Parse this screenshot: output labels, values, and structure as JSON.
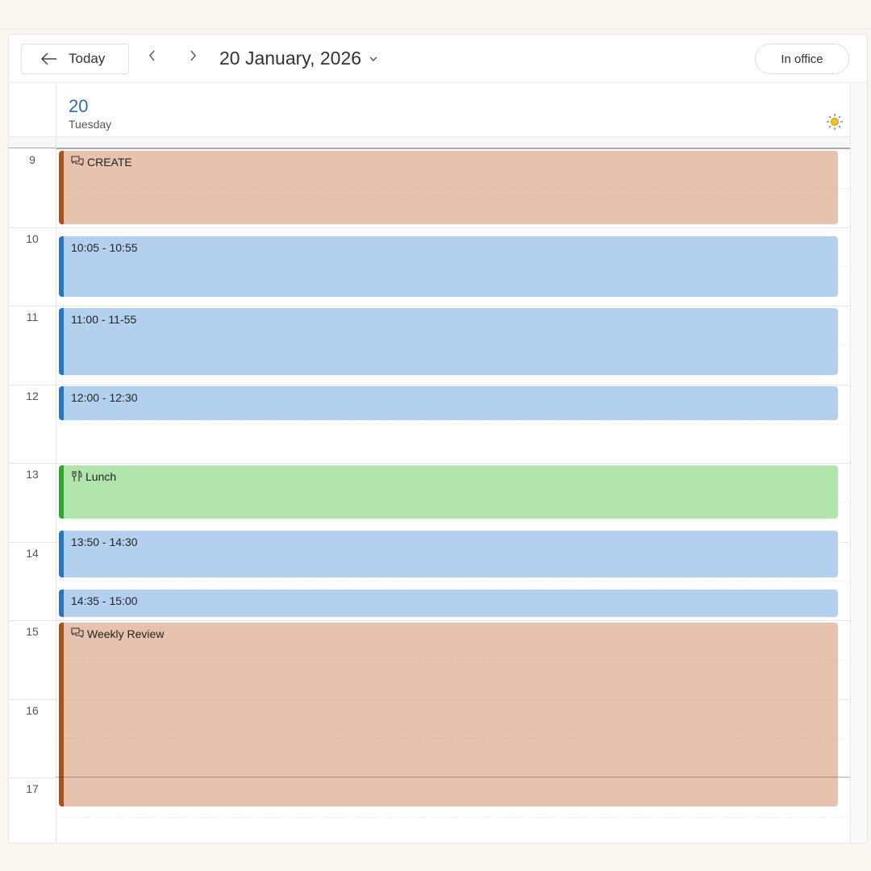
{
  "toolbar": {
    "today_label": "Today",
    "date_title": "20 January, 2026",
    "status_label": "In office",
    "back_icon": "arrow-left-icon",
    "prev_icon": "chevron-left-icon",
    "next_icon": "chevron-right-icon",
    "dropdown_icon": "chevron-down-icon"
  },
  "day": {
    "number": "20",
    "name": "Tuesday",
    "weather_icon": "sun-icon"
  },
  "hours": [
    "9",
    "10",
    "11",
    "12",
    "13",
    "14",
    "15",
    "16",
    "17"
  ],
  "events": [
    {
      "title": "CREATE",
      "icon": "chat-icon",
      "color": "brown"
    },
    {
      "title": "10:05 - 10:55",
      "color": "blue"
    },
    {
      "title": "11:00 - 11-55",
      "color": "blue"
    },
    {
      "title": "12:00 - 12:30",
      "color": "blue"
    },
    {
      "title": "Lunch",
      "icon": "fork-knife-icon",
      "color": "green"
    },
    {
      "title": "13:50 - 14:30",
      "color": "blue"
    },
    {
      "title": "14:35 - 15:00",
      "color": "blue"
    },
    {
      "title": "Weekly Review",
      "icon": "chat-icon",
      "color": "brown"
    }
  ],
  "colors": {
    "brown": "#a9521e",
    "blue": "#2a75c0",
    "green": "#2ea52c",
    "day_accent": "#2b6fa8"
  }
}
